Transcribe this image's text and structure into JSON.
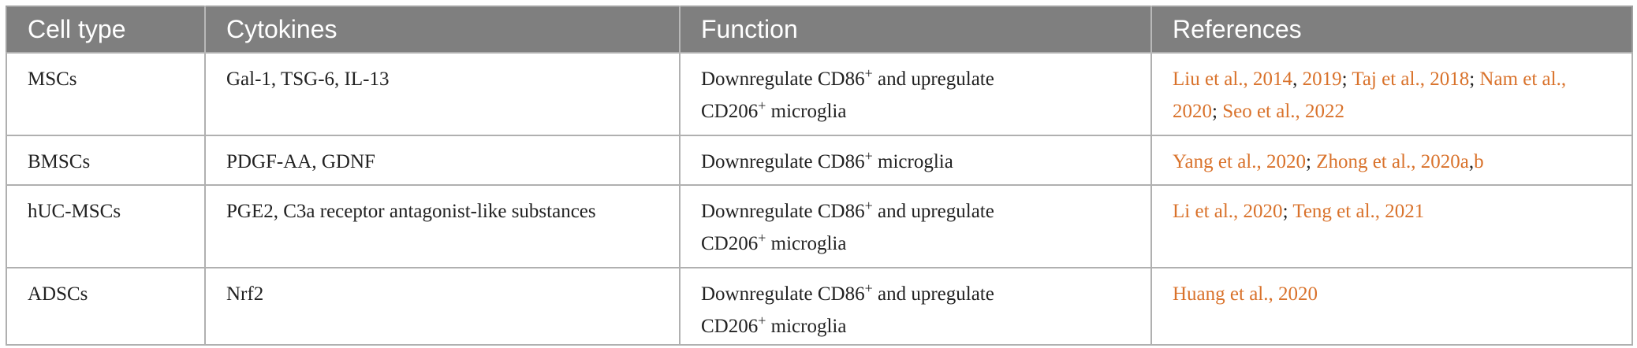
{
  "table": {
    "headers": [
      "Cell type",
      "Cytokines",
      "Function",
      "References"
    ],
    "rows": [
      {
        "cell_type": "MSCs",
        "cytokines": "Gal-1, TSG-6, IL-13",
        "function": [
          {
            "text": "Downregulate CD86",
            "sup": false
          },
          {
            "text": "+",
            "sup": true
          },
          {
            "text": " and upregulate CD206",
            "sup": false
          },
          {
            "text": "+",
            "sup": true
          },
          {
            "text": " microglia",
            "sup": false
          }
        ],
        "references": [
          {
            "text": "Liu et al., 2014",
            "link": true
          },
          {
            "text": ", ",
            "link": false
          },
          {
            "text": "2019",
            "link": true
          },
          {
            "text": "; ",
            "link": false
          },
          {
            "text": "Taj et al., 2018",
            "link": true
          },
          {
            "text": "; ",
            "link": false
          },
          {
            "text": "Nam et al., 2020",
            "link": true
          },
          {
            "text": "; ",
            "link": false
          },
          {
            "text": "Seo et al., 2022",
            "link": true
          }
        ]
      },
      {
        "cell_type": "BMSCs",
        "cytokines": "PDGF-AA, GDNF",
        "function": [
          {
            "text": "Downregulate CD86",
            "sup": false
          },
          {
            "text": "+",
            "sup": true
          },
          {
            "text": " microglia",
            "sup": false
          }
        ],
        "references": [
          {
            "text": "Yang et al., 2020",
            "link": true
          },
          {
            "text": "; ",
            "link": false
          },
          {
            "text": "Zhong et al., 2020a",
            "link": true
          },
          {
            "text": ",",
            "link": false
          },
          {
            "text": "b",
            "link": true
          }
        ]
      },
      {
        "cell_type": "hUC-MSCs",
        "cytokines": "PGE2, C3a receptor antagonist-like substances",
        "function": [
          {
            "text": "Downregulate CD86",
            "sup": false
          },
          {
            "text": "+",
            "sup": true
          },
          {
            "text": " and upregulate CD206",
            "sup": false
          },
          {
            "text": "+",
            "sup": true
          },
          {
            "text": " microglia",
            "sup": false
          }
        ],
        "references": [
          {
            "text": "Li et al., 2020",
            "link": true
          },
          {
            "text": "; ",
            "link": false
          },
          {
            "text": "Teng et al., 2021",
            "link": true
          }
        ]
      },
      {
        "cell_type": "ADSCs",
        "cytokines": "Nrf2",
        "function": [
          {
            "text": "Downregulate CD86",
            "sup": false
          },
          {
            "text": "+",
            "sup": true
          },
          {
            "text": " and upregulate CD206",
            "sup": false
          },
          {
            "text": "+",
            "sup": true
          },
          {
            "text": " microglia",
            "sup": false
          }
        ],
        "references": [
          {
            "text": "Huang et al., 2020",
            "link": true
          }
        ]
      }
    ]
  }
}
